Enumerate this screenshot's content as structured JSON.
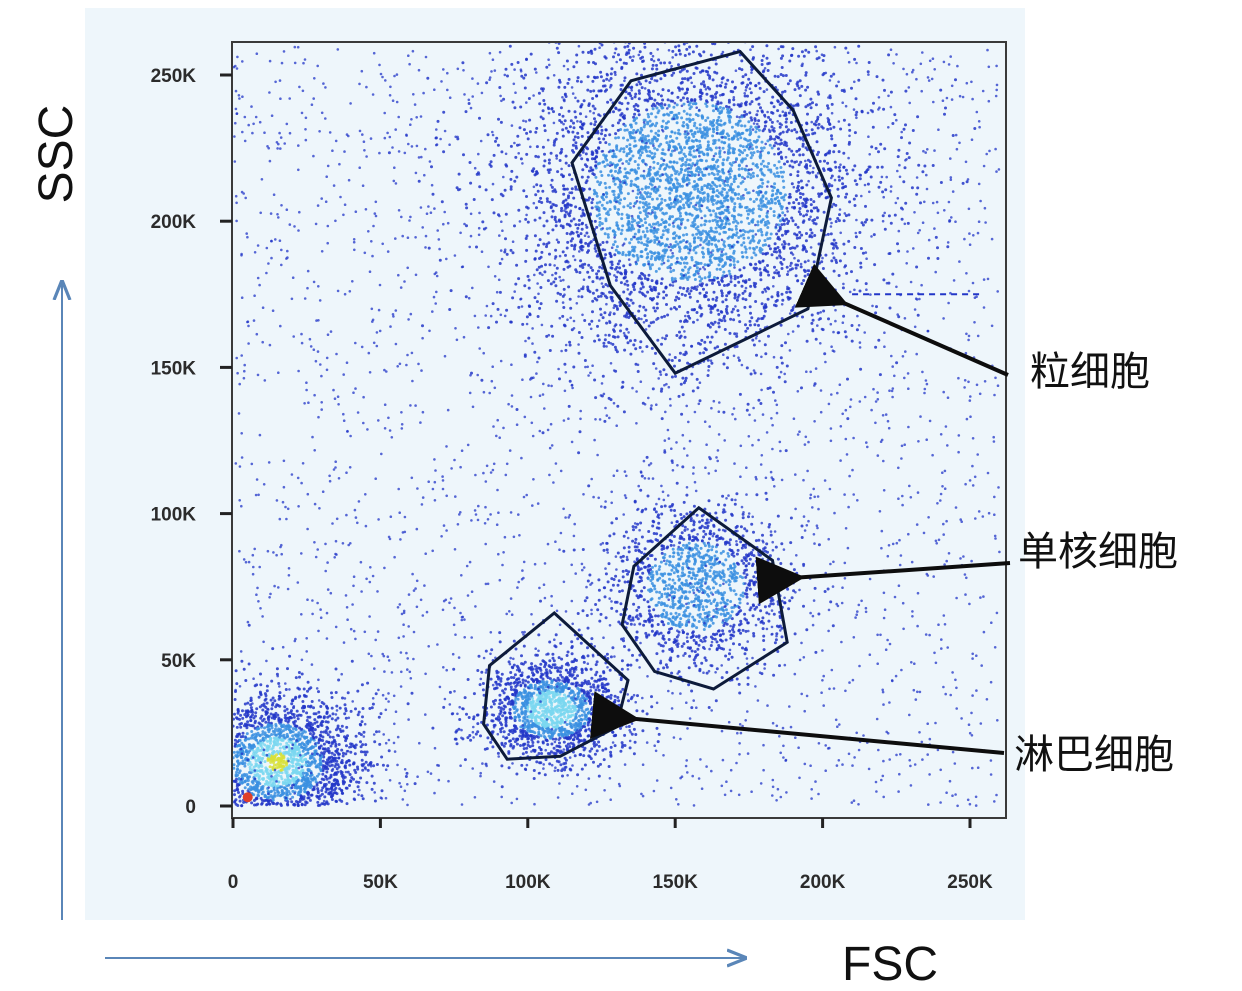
{
  "chart_data": {
    "type": "scatter",
    "subtype": "flow-cytometry density plot",
    "xlabel": "FSC",
    "ylabel": "SSC",
    "xlim": [
      0,
      265000
    ],
    "ylim": [
      0,
      265000
    ],
    "x_ticks": [
      {
        "value": 0,
        "label": "0"
      },
      {
        "value": 50000,
        "label": "50K"
      },
      {
        "value": 100000,
        "label": "100K"
      },
      {
        "value": 150000,
        "label": "150K"
      },
      {
        "value": 200000,
        "label": "200K"
      },
      {
        "value": 250000,
        "label": "250K"
      }
    ],
    "y_ticks": [
      {
        "value": 0,
        "label": "0"
      },
      {
        "value": 50000,
        "label": "50K"
      },
      {
        "value": 100000,
        "label": "100K"
      },
      {
        "value": 150000,
        "label": "150K"
      },
      {
        "value": 200000,
        "label": "200K"
      },
      {
        "value": 250000,
        "label": "250K"
      }
    ],
    "grid": false,
    "populations": [
      {
        "label": "粒细胞",
        "center": [
          155000,
          210000
        ],
        "spread": [
          30000,
          28000
        ],
        "count": 4200
      },
      {
        "label": "单核细胞",
        "center": [
          157000,
          75000
        ],
        "spread": [
          15000,
          14000
        ],
        "count": 1300
      },
      {
        "label": "淋巴细胞",
        "center": [
          108000,
          33000
        ],
        "spread": [
          12000,
          9000
        ],
        "count": 1500
      },
      {
        "label": "",
        "center": [
          15000,
          15000
        ],
        "spread": [
          14000,
          12000
        ],
        "count": 2200
      }
    ],
    "gates": [
      {
        "label": "粒细胞",
        "vertices": [
          [
            115000,
            220000
          ],
          [
            135000,
            248000
          ],
          [
            172000,
            258000
          ],
          [
            190000,
            238000
          ],
          [
            203000,
            208000
          ],
          [
            195000,
            170000
          ],
          [
            150000,
            148000
          ],
          [
            128000,
            178000
          ]
        ]
      },
      {
        "label": "单核细胞",
        "vertices": [
          [
            136000,
            82000
          ],
          [
            158000,
            102000
          ],
          [
            183000,
            84000
          ],
          [
            188000,
            56000
          ],
          [
            163000,
            40000
          ],
          [
            143000,
            46000
          ],
          [
            132000,
            62000
          ]
        ]
      },
      {
        "label": "淋巴细胞",
        "vertices": [
          [
            87000,
            48000
          ],
          [
            109000,
            66000
          ],
          [
            134000,
            43000
          ],
          [
            130000,
            27000
          ],
          [
            111000,
            17000
          ],
          [
            93000,
            16000
          ],
          [
            85000,
            28000
          ]
        ]
      }
    ],
    "annotations": [
      {
        "text": "粒细胞",
        "points_to": [
          205000,
          173000
        ]
      },
      {
        "text": "单核细胞",
        "points_to": [
          190000,
          78000
        ]
      },
      {
        "text": "淋巴细胞",
        "points_to": [
          134000,
          30000
        ]
      }
    ],
    "colors": {
      "sparse": "#2236c8",
      "dense": "#3a8fe0",
      "core": "#7ad7f0",
      "hot": "#d8e03a",
      "gate": "#0d1b3a",
      "axis_arrows": "#5a86b8"
    }
  }
}
